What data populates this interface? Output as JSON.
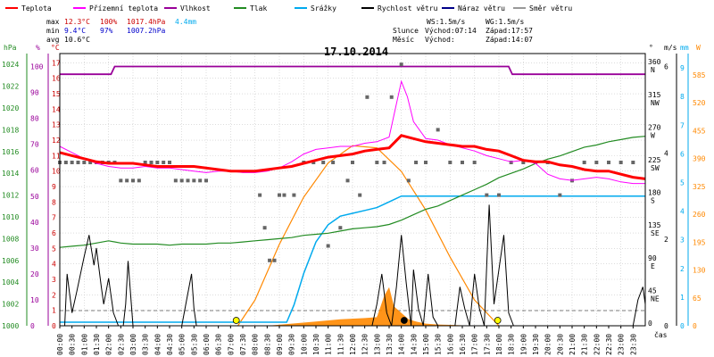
{
  "chart_data": {
    "type": "line",
    "title": "17.10.2014",
    "legend": [
      {
        "label": "Teplota",
        "color": "#ff0000"
      },
      {
        "label": "Přízemní teplota",
        "color": "#ff00ff"
      },
      {
        "label": "Vlhkost",
        "color": "#990099"
      },
      {
        "label": "Tlak",
        "color": "#228b22"
      },
      {
        "label": "Srážky",
        "color": "#00aaee"
      },
      {
        "label": "Rychlost větru",
        "color": "#000000"
      },
      {
        "label": "Náraz větru",
        "color": "#000088"
      },
      {
        "label": "Směr větru",
        "color": "#999999"
      }
    ],
    "stats": {
      "max_label": "max",
      "max_temp": "12.3°C",
      "max_hum": "100%",
      "max_press": "1017.4hPa",
      "max_rain": "4.4mm",
      "min_label": "min",
      "min_temp": "9.4°C",
      "min_hum": "97%",
      "min_press": "1007.2hPa",
      "avg_label": "avg",
      "avg_temp": "10.6°C",
      "ws": "WS:1.5m/s",
      "wg": "WG:1.5m/s",
      "sun_label": "Slunce",
      "sun_rise": "Východ:07:14",
      "sun_set": "Západ:17:57",
      "moon_label": "Měsíc",
      "moon_rise": "Východ:",
      "moon_set": "Západ:14:07"
    },
    "axes": {
      "hpa_unit": "hPa",
      "pct_unit": "%",
      "c_unit": "°C",
      "deg_unit": "°",
      "ms_unit": "m/s",
      "mm_unit": "mm",
      "wm_unit": "W",
      "time_unit": "čas",
      "hpa_ticks": [
        "1024",
        "1022",
        "1020",
        "1018",
        "1016",
        "1014",
        "1012",
        "1010",
        "1008",
        "1006",
        "1004",
        "1002",
        "1000"
      ],
      "pct_ticks": [
        "100",
        "90",
        "80",
        "70",
        "60",
        "50",
        "40",
        "30",
        "20",
        "10",
        "0"
      ],
      "c_ticks": [
        "17",
        "16",
        "15",
        "14",
        "13",
        "12",
        "11",
        "10",
        "9",
        "8",
        "7",
        "6",
        "5",
        "4",
        "3",
        "2",
        "1",
        "0"
      ],
      "deg_ticks": [
        {
          "v": "360",
          "d": "N"
        },
        {
          "v": "315",
          "d": "NW"
        },
        {
          "v": "270",
          "d": "W"
        },
        {
          "v": "225",
          "d": "SW"
        },
        {
          "v": "180",
          "d": "S"
        },
        {
          "v": "135",
          "d": "SE"
        },
        {
          "v": "90",
          "d": "E"
        },
        {
          "v": "45",
          "d": "NE"
        },
        {
          "v": "0",
          "d": ""
        }
      ],
      "ms_ticks": [
        "6",
        "4",
        "2",
        "0"
      ],
      "mm_ticks": [
        "9",
        "8",
        "7",
        "6",
        "5",
        "4",
        "3",
        "2",
        "1",
        "0"
      ],
      "wm_ticks": [
        "585",
        "520",
        "455",
        "390",
        "325",
        "260",
        "195",
        "130",
        "65",
        "0"
      ],
      "x_ticks": [
        "00:00",
        "00:30",
        "01:00",
        "01:30",
        "02:00",
        "02:30",
        "03:00",
        "03:30",
        "04:00",
        "04:30",
        "05:00",
        "05:30",
        "06:00",
        "06:30",
        "07:00",
        "07:30",
        "08:00",
        "08:30",
        "09:00",
        "09:30",
        "10:00",
        "10:30",
        "11:00",
        "11:30",
        "12:00",
        "12:30",
        "13:00",
        "13:30",
        "14:00",
        "14:30",
        "15:00",
        "15:30",
        "16:00",
        "16:30",
        "17:00",
        "17:30",
        "18:00",
        "18:30",
        "19:00",
        "19:30",
        "20:00",
        "20:30",
        "21:00",
        "21:30",
        "22:00",
        "22:30",
        "23:00",
        "23:30"
      ]
    },
    "temperature": {
      "x": [
        0,
        0.5,
        1,
        1.5,
        2,
        2.5,
        3,
        3.5,
        4,
        4.5,
        5,
        5.5,
        6,
        6.5,
        7,
        7.5,
        8,
        8.5,
        9,
        9.5,
        10,
        10.5,
        11,
        11.5,
        12,
        12.5,
        13,
        13.5,
        14,
        14.5,
        15,
        15.5,
        16,
        16.5,
        17,
        17.5,
        18,
        18.5,
        19,
        19.5,
        20,
        20.5,
        21,
        21.5,
        22,
        22.5,
        23,
        23.5,
        24
      ],
      "y": [
        11.2,
        11,
        10.8,
        10.6,
        10.5,
        10.5,
        10.5,
        10.4,
        10.3,
        10.3,
        10.3,
        10.3,
        10.2,
        10.1,
        10,
        10,
        10,
        10.1,
        10.2,
        10.3,
        10.5,
        10.7,
        10.9,
        11,
        11.1,
        11.3,
        11.4,
        11.5,
        12.3,
        12.1,
        11.9,
        11.8,
        11.7,
        11.6,
        11.6,
        11.4,
        11.3,
        11,
        10.7,
        10.6,
        10.6,
        10.4,
        10.3,
        10.1,
        10,
        10,
        9.8,
        9.6,
        9.5
      ]
    },
    "ground_temperature": {
      "x": [
        0,
        0.5,
        1,
        1.5,
        2,
        2.5,
        3,
        3.5,
        4,
        4.5,
        5,
        5.5,
        6,
        6.5,
        7,
        7.5,
        8,
        8.5,
        9,
        9.5,
        10,
        10.5,
        11,
        11.5,
        12,
        12.5,
        13,
        13.5,
        14,
        14.25,
        14.5,
        15,
        15.5,
        16,
        16.5,
        17,
        17.5,
        18,
        18.5,
        19,
        19.5,
        20,
        20.5,
        21,
        21.5,
        22,
        22.5,
        23,
        23.5,
        24
      ],
      "y": [
        11.6,
        11.2,
        10.8,
        10.5,
        10.3,
        10.2,
        10.2,
        10.3,
        10.2,
        10.2,
        10.1,
        10.0,
        9.9,
        10.0,
        10.0,
        9.9,
        9.9,
        10.0,
        10.2,
        10.6,
        11.1,
        11.4,
        11.5,
        11.6,
        11.6,
        11.8,
        11.9,
        12.2,
        15.8,
        14.8,
        13.2,
        12.1,
        12.0,
        11.7,
        11.5,
        11.3,
        11.0,
        10.8,
        10.6,
        10.7,
        10.5,
        9.8,
        9.5,
        9.4,
        9.5,
        9.6,
        9.5,
        9.3,
        9.2,
        9.2
      ]
    },
    "humidity": {
      "x": [
        0,
        2.1,
        2.25,
        18.4,
        18.55,
        24
      ],
      "y": [
        97,
        97,
        100,
        100,
        97,
        97
      ]
    },
    "pressure": {
      "x": [
        0,
        0.5,
        1,
        1.5,
        2,
        2.5,
        3,
        3.5,
        4,
        4.5,
        5,
        5.5,
        6,
        6.5,
        7,
        7.5,
        8,
        8.5,
        9,
        9.5,
        10,
        10.5,
        11,
        11.5,
        12,
        12.5,
        13,
        13.5,
        14,
        14.5,
        15,
        15.5,
        16,
        16.5,
        17,
        17.5,
        18,
        18.5,
        19,
        19.5,
        20,
        20.5,
        21,
        21.5,
        22,
        22.5,
        23,
        23.5,
        24
      ],
      "y": [
        1007.2,
        1007.3,
        1007.4,
        1007.6,
        1007.8,
        1007.6,
        1007.5,
        1007.5,
        1007.5,
        1007.4,
        1007.5,
        1007.5,
        1007.5,
        1007.6,
        1007.6,
        1007.7,
        1007.8,
        1007.9,
        1008,
        1008.1,
        1008.3,
        1008.4,
        1008.5,
        1008.7,
        1008.9,
        1009,
        1009.1,
        1009.3,
        1009.7,
        1010.2,
        1010.7,
        1011,
        1011.5,
        1012,
        1012.5,
        1013,
        1013.6,
        1014,
        1014.4,
        1014.9,
        1015.3,
        1015.6,
        1016,
        1016.4,
        1016.6,
        1016.9,
        1017.1,
        1017.3,
        1017.4
      ]
    },
    "rain": {
      "x": [
        0,
        9.3,
        9.6,
        10,
        10.5,
        11,
        11.5,
        12,
        12.5,
        13,
        13.5,
        14,
        14.5,
        15,
        24
      ],
      "y": [
        0,
        0,
        0.6,
        1.7,
        2.8,
        3.4,
        3.7,
        3.8,
        3.9,
        4.0,
        4.2,
        4.4,
        4.4,
        4.4,
        4.4
      ]
    },
    "wind_speed": {
      "x": [
        0,
        0.2,
        0.3,
        0.5,
        0.7,
        1,
        1.2,
        1.4,
        1.5,
        1.7,
        1.8,
        2,
        2.2,
        2.4,
        2.6,
        2.7,
        2.8,
        3,
        3.2,
        3.4,
        3.6,
        4,
        4.5,
        5,
        5.2,
        5.4,
        5.5,
        5.6,
        5.7,
        6,
        12,
        12.5,
        12.8,
        13,
        13.2,
        13.4,
        13.6,
        13.8,
        14,
        14.2,
        14.4,
        14.5,
        14.7,
        14.9,
        15.1,
        15.3,
        15.5,
        16,
        16.2,
        16.4,
        16.6,
        16.8,
        17,
        17.2,
        17.4,
        17.6,
        17.8,
        18,
        18.2,
        18.4,
        18.6,
        18.8,
        19,
        23.5,
        23.7,
        23.9,
        24
      ],
      "y": [
        0,
        0,
        1.2,
        0.3,
        0.8,
        1.6,
        2.1,
        1.4,
        1.8,
        0.9,
        0.5,
        1.1,
        0.3,
        0,
        0,
        0.5,
        1.5,
        0,
        0,
        0,
        0,
        0,
        0,
        0,
        0.6,
        1.2,
        0.4,
        0,
        0,
        0,
        0,
        0,
        0,
        0.5,
        1.2,
        0.3,
        0,
        0.9,
        2.1,
        1.0,
        0,
        1.3,
        0.4,
        0,
        1.2,
        0.2,
        0,
        0,
        0,
        0.9,
        0.4,
        0,
        1.2,
        0.4,
        0,
        2.8,
        0.5,
        1.3,
        2.1,
        0.3,
        0,
        0,
        0,
        0,
        0.6,
        0.9,
        0.5
      ]
    },
    "wind_direction": {
      "x": [
        0,
        0.25,
        0.5,
        0.75,
        1,
        1.25,
        1.5,
        1.75,
        2,
        2.25,
        2.5,
        2.75,
        3,
        3.25,
        3.5,
        3.75,
        4,
        4.25,
        4.5,
        4.75,
        5,
        5.25,
        5.5,
        5.75,
        6,
        8.2,
        8.4,
        8.6,
        8.8,
        9,
        9.2,
        9.6,
        10,
        10.4,
        10.8,
        11,
        11.2,
        11.5,
        11.8,
        12,
        12.3,
        12.6,
        13,
        13.3,
        13.6,
        14,
        14.3,
        14.6,
        15,
        15.5,
        16,
        16.5,
        17,
        17.5,
        18,
        18.5,
        19,
        19.5,
        20,
        20.5,
        21,
        21.5,
        22,
        22.5,
        23,
        23.5
      ],
      "y": [
        225,
        225,
        225,
        225,
        225,
        225,
        225,
        225,
        225,
        225,
        200,
        200,
        200,
        200,
        225,
        225,
        225,
        225,
        225,
        200,
        200,
        200,
        200,
        200,
        200,
        180,
        135,
        90,
        90,
        180,
        180,
        180,
        225,
        225,
        225,
        110,
        225,
        135,
        200,
        225,
        180,
        315,
        225,
        225,
        315,
        360,
        200,
        225,
        225,
        270,
        225,
        225,
        225,
        180,
        180,
        225,
        225,
        225,
        225,
        180,
        200,
        225,
        225,
        225,
        225,
        225
      ]
    },
    "solar": {
      "x": [
        7.3,
        8,
        9,
        10,
        11,
        12,
        13,
        14,
        15,
        16,
        17,
        18.0
      ],
      "y": [
        0,
        60,
        190,
        300,
        380,
        420,
        415,
        360,
        270,
        160,
        60,
        0
      ]
    },
    "solar_measured": {
      "x": [
        8.5,
        9.5,
        10.5,
        11.5,
        12.5,
        13.0,
        13.3,
        13.5,
        13.7,
        14.0,
        14.3,
        14.6,
        15.0,
        15.5,
        16,
        16.5,
        17,
        17.5,
        18
      ],
      "y": [
        0,
        5,
        10,
        15,
        18,
        20,
        70,
        90,
        45,
        30,
        15,
        10,
        5,
        3,
        2,
        1,
        0,
        0,
        0
      ]
    },
    "sunrise_marker": "07:14",
    "sunset_marker": "17:57",
    "moonset_marker": "14:07"
  }
}
